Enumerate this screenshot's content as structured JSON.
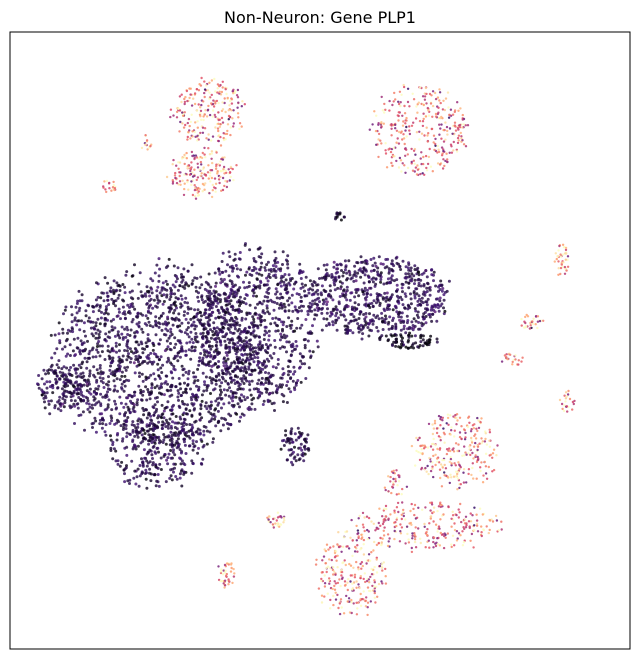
{
  "chart_data": {
    "type": "scatter",
    "title": "Non-Neuron: Gene PLP1",
    "xlabel": "",
    "ylabel": "",
    "xticks": [],
    "yticks": [],
    "grid": false,
    "legend": "none",
    "colormap": "magma",
    "colormap_stops": [
      "#000004",
      "#3b0f70",
      "#8c2981",
      "#de4968",
      "#fe9f6d",
      "#fcfdbf"
    ],
    "xlim": [
      0,
      100
    ],
    "ylim": [
      0,
      100
    ],
    "clusters": [
      {
        "name": "large-dark-mass-left",
        "cx": 24,
        "cy": 47,
        "rx": 17,
        "ry": 15,
        "value": 0.12,
        "n": 1600
      },
      {
        "name": "large-dark-mass-center",
        "cx": 40,
        "cy": 52,
        "rx": 10,
        "ry": 13,
        "value": 0.13,
        "n": 800
      },
      {
        "name": "dark-mass-right-lobe",
        "cx": 59,
        "cy": 57,
        "rx": 12,
        "ry": 6.5,
        "value": 0.14,
        "n": 650
      },
      {
        "name": "dark-spike-left",
        "cx": 8,
        "cy": 42,
        "rx": 4,
        "ry": 4,
        "value": 0.12,
        "n": 120
      },
      {
        "name": "dark-bottom-lobe",
        "cx": 24,
        "cy": 32,
        "rx": 8,
        "ry": 6,
        "value": 0.12,
        "n": 250
      },
      {
        "name": "dark-small-blob",
        "cx": 46,
        "cy": 33,
        "rx": 2.5,
        "ry": 3,
        "value": 0.12,
        "n": 70
      },
      {
        "name": "dark-tiny-top",
        "cx": 53,
        "cy": 70,
        "rx": 1,
        "ry": 0.8,
        "value": 0.1,
        "n": 12
      },
      {
        "name": "dark-streak",
        "cx": 64,
        "cy": 50,
        "rx": 5,
        "ry": 1.4,
        "value": 0.05,
        "n": 70
      },
      {
        "name": "light-top-left-upper",
        "cx": 32,
        "cy": 87,
        "rx": 6,
        "ry": 5.5,
        "value": 0.78,
        "n": 230
      },
      {
        "name": "light-top-left-lower",
        "cx": 31,
        "cy": 77,
        "rx": 5.5,
        "ry": 4,
        "value": 0.78,
        "n": 180
      },
      {
        "name": "light-top-right",
        "cx": 66,
        "cy": 84,
        "rx": 8,
        "ry": 7.5,
        "value": 0.7,
        "n": 320
      },
      {
        "name": "light-bottom-right-upper",
        "cx": 72,
        "cy": 32,
        "rx": 7,
        "ry": 6.5,
        "value": 0.75,
        "n": 260
      },
      {
        "name": "light-bottom-right-arm",
        "cx": 67,
        "cy": 20,
        "rx": 12,
        "ry": 4,
        "value": 0.72,
        "n": 260
      },
      {
        "name": "light-bottom-center",
        "cx": 55,
        "cy": 12,
        "rx": 5.5,
        "ry": 7,
        "value": 0.8,
        "n": 240
      },
      {
        "name": "light-small-bottom-left",
        "cx": 35,
        "cy": 12,
        "rx": 1.6,
        "ry": 2.2,
        "value": 0.85,
        "n": 40
      },
      {
        "name": "light-small-mid-left",
        "cx": 43,
        "cy": 21,
        "rx": 1.5,
        "ry": 1.5,
        "value": 0.85,
        "n": 30
      },
      {
        "name": "light-small-right-1",
        "cx": 89,
        "cy": 63,
        "rx": 1.2,
        "ry": 3,
        "value": 0.85,
        "n": 40
      },
      {
        "name": "light-small-right-2",
        "cx": 84,
        "cy": 53,
        "rx": 2,
        "ry": 1.2,
        "value": 0.85,
        "n": 30
      },
      {
        "name": "light-small-right-3",
        "cx": 81,
        "cy": 47,
        "rx": 2,
        "ry": 1,
        "value": 0.7,
        "n": 22
      },
      {
        "name": "light-small-right-4",
        "cx": 90,
        "cy": 40,
        "rx": 1.5,
        "ry": 2,
        "value": 0.7,
        "n": 22
      },
      {
        "name": "light-small-top-left",
        "cx": 16,
        "cy": 75,
        "rx": 1.5,
        "ry": 1,
        "value": 0.8,
        "n": 18
      },
      {
        "name": "light-small-streak",
        "cx": 22,
        "cy": 82,
        "rx": 0.8,
        "ry": 1.5,
        "value": 0.85,
        "n": 14
      },
      {
        "name": "light-small-left-center",
        "cx": 62,
        "cy": 27,
        "rx": 2,
        "ry": 2.5,
        "value": 0.75,
        "n": 30
      }
    ]
  }
}
